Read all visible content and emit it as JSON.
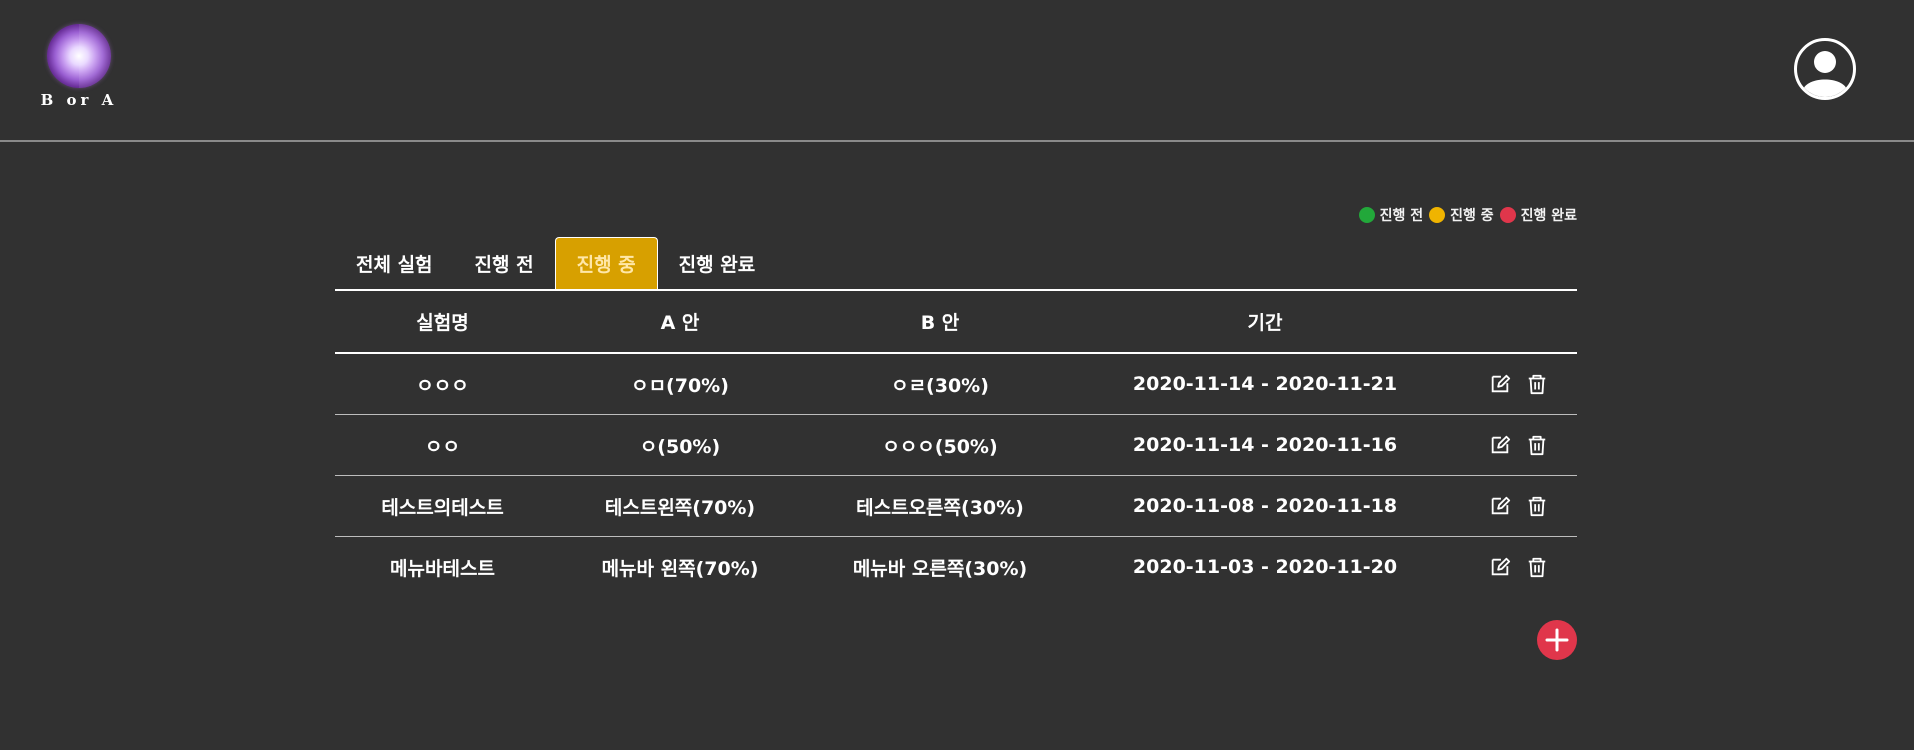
{
  "header": {
    "logo_text": "B or A",
    "profile_icon": "user-circle-icon"
  },
  "legend": [
    {
      "label": "진행 전",
      "color": "#22a83a"
    },
    {
      "label": "진행 중",
      "color": "#f0b400"
    },
    {
      "label": "진행 완료",
      "color": "#e0364b"
    }
  ],
  "tabs": [
    {
      "label": "전체 실험",
      "active": false
    },
    {
      "label": "진행 전",
      "active": false
    },
    {
      "label": "진행 중",
      "active": true
    },
    {
      "label": "진행 완료",
      "active": false
    }
  ],
  "table": {
    "columns": [
      "실험명",
      "A 안",
      "B 안",
      "기간",
      ""
    ],
    "rows": [
      {
        "name": "ㅇㅇㅇ",
        "a": "ㅇㅁ(70%)",
        "b": "ㅇㄹ(30%)",
        "period": "2020-11-14 - 2020-11-21"
      },
      {
        "name": "ㅇㅇ",
        "a": "ㅇ(50%)",
        "b": "ㅇㅇㅇ(50%)",
        "period": "2020-11-14 - 2020-11-16"
      },
      {
        "name": "테스트의테스트",
        "a": "테스트왼쪽(70%)",
        "b": "테스트오른쪽(30%)",
        "period": "2020-11-08 - 2020-11-18"
      },
      {
        "name": "메뉴바테스트",
        "a": "메뉴바 왼쪽(70%)",
        "b": "메뉴바 오른쪽(30%)",
        "period": "2020-11-03 - 2020-11-20"
      }
    ],
    "row_actions": [
      "edit-icon",
      "trash-icon"
    ]
  },
  "add_button": {
    "icon": "plus-icon",
    "color": "#e0364b"
  }
}
